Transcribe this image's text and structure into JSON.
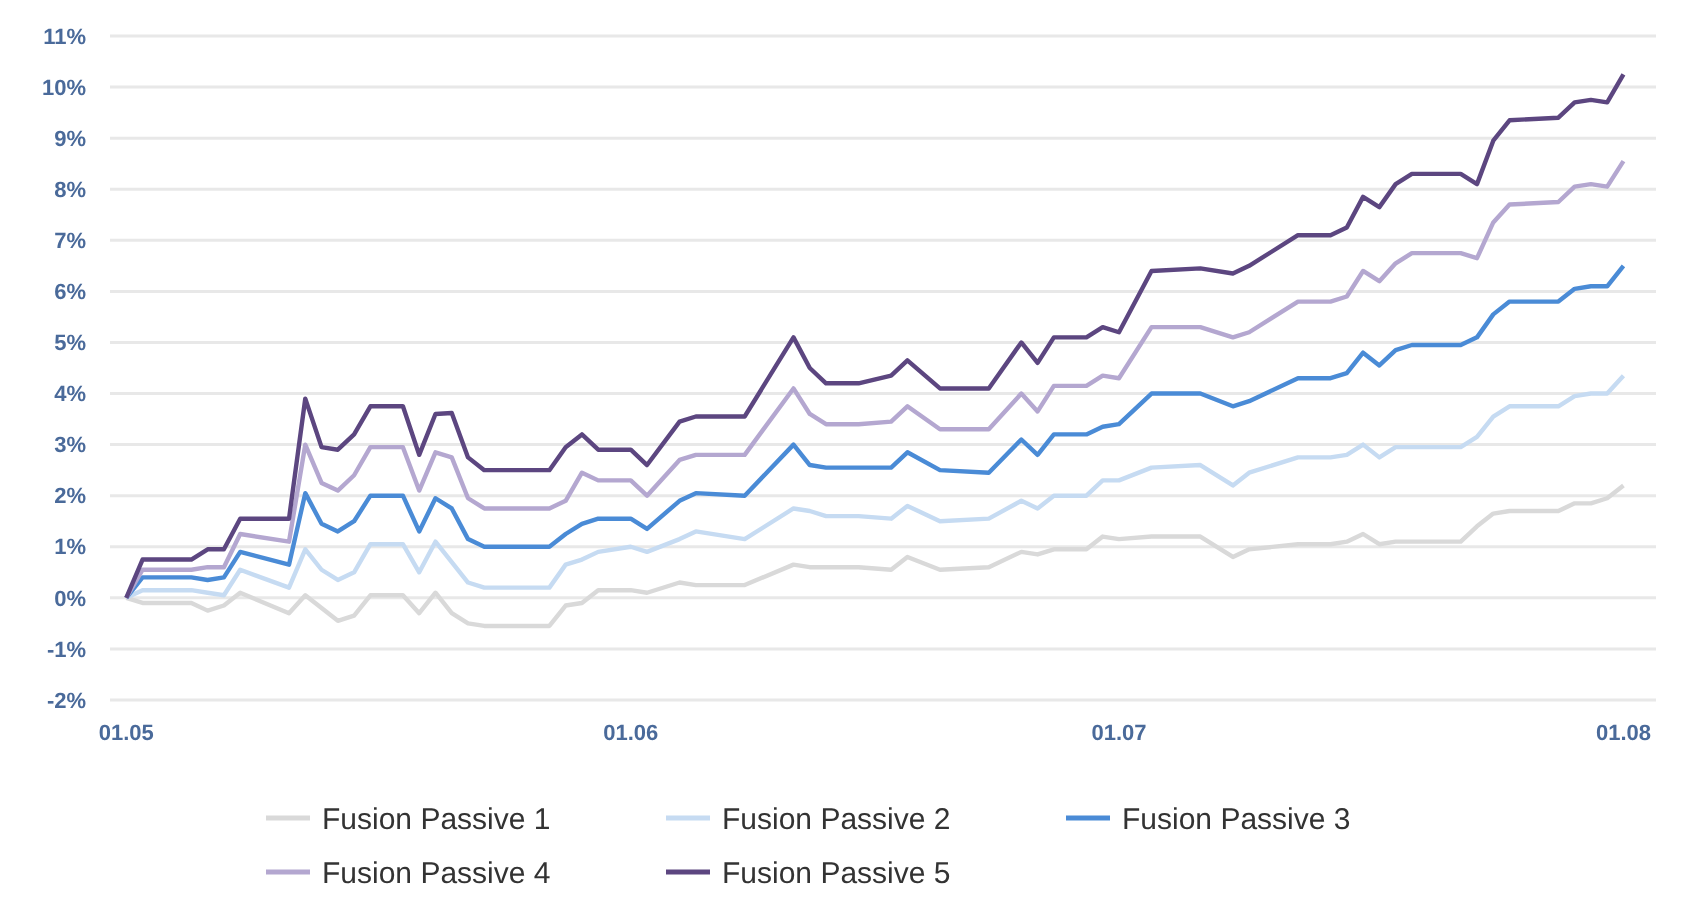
{
  "chart_data": {
    "type": "line",
    "x": [
      "--05-01",
      "--05-02",
      "--05-05",
      "--05-06",
      "--05-07",
      "--05-08",
      "--05-11",
      "--05-12",
      "--05-13",
      "--05-14",
      "--05-15",
      "--05-16",
      "--05-18",
      "--05-19",
      "--05-20",
      "--05-21",
      "--05-22",
      "--05-23",
      "--05-26",
      "--05-27",
      "--05-28",
      "--05-29",
      "--05-30",
      "--06-01",
      "--06-02",
      "--06-04",
      "--06-05",
      "--06-08",
      "--06-11",
      "--06-12",
      "--06-13",
      "--06-15",
      "--06-17",
      "--06-18",
      "--06-20",
      "--06-23",
      "--06-25",
      "--06-26",
      "--06-27",
      "--06-29",
      "--06-30",
      "--07-01",
      "--07-03",
      "--07-06",
      "--07-08",
      "--07-09",
      "--07-12",
      "--07-14",
      "--07-15",
      "--07-16",
      "--07-17",
      "--07-18",
      "--07-19",
      "--07-22",
      "--07-23",
      "--07-24",
      "--07-25",
      "--07-28",
      "--07-29",
      "--07-30",
      "--07-31",
      "--08-01"
    ],
    "series": [
      {
        "name": "Fusion Passive 1",
        "color": "#d9d9d9",
        "values": [
          0,
          -0.1,
          -0.1,
          -0.25,
          -0.15,
          0.1,
          -0.3,
          0.05,
          -0.2,
          -0.45,
          -0.35,
          0.05,
          0.05,
          -0.3,
          0.1,
          -0.3,
          -0.5,
          -0.55,
          -0.55,
          -0.55,
          -0.15,
          -0.1,
          0.15,
          0.15,
          0.1,
          0.3,
          0.25,
          0.25,
          0.65,
          0.6,
          0.6,
          0.6,
          0.55,
          0.8,
          0.55,
          0.6,
          0.9,
          0.85,
          0.95,
          0.95,
          1.2,
          1.15,
          1.2,
          1.2,
          0.8,
          0.95,
          1.05,
          1.05,
          1.1,
          1.25,
          1.05,
          1.1,
          1.1,
          1.1,
          1.4,
          1.65,
          1.7,
          1.7,
          1.85,
          1.85,
          1.95,
          2.2
        ]
      },
      {
        "name": "Fusion Passive 2",
        "color": "#c6dbf2",
        "values": [
          0,
          0.15,
          0.15,
          0.1,
          0.05,
          0.55,
          0.2,
          0.95,
          0.55,
          0.35,
          0.5,
          1.05,
          1.05,
          0.5,
          1.1,
          0.7,
          0.3,
          0.2,
          0.2,
          0.2,
          0.65,
          0.75,
          0.9,
          1.0,
          0.9,
          1.15,
          1.3,
          1.15,
          1.75,
          1.7,
          1.6,
          1.6,
          1.55,
          1.8,
          1.5,
          1.55,
          1.9,
          1.75,
          2.0,
          2.0,
          2.3,
          2.3,
          2.55,
          2.6,
          2.2,
          2.45,
          2.75,
          2.75,
          2.8,
          3.0,
          2.75,
          2.95,
          2.95,
          2.95,
          3.15,
          3.55,
          3.75,
          3.75,
          3.95,
          4.0,
          4.0,
          4.35
        ]
      },
      {
        "name": "Fusion Passive 3",
        "color": "#4a8bd6",
        "values": [
          0,
          0.4,
          0.4,
          0.35,
          0.4,
          0.9,
          0.65,
          2.05,
          1.45,
          1.3,
          1.5,
          2.0,
          2.0,
          1.3,
          1.95,
          1.75,
          1.15,
          1.0,
          1.0,
          1.0,
          1.25,
          1.45,
          1.55,
          1.55,
          1.35,
          1.9,
          2.05,
          2.0,
          3.0,
          2.6,
          2.55,
          2.55,
          2.55,
          2.85,
          2.5,
          2.45,
          3.1,
          2.8,
          3.2,
          3.2,
          3.35,
          3.4,
          4.0,
          4.0,
          3.75,
          3.85,
          4.3,
          4.3,
          4.4,
          4.8,
          4.55,
          4.85,
          4.95,
          4.95,
          5.1,
          5.55,
          5.8,
          5.8,
          6.05,
          6.1,
          6.1,
          6.5
        ]
      },
      {
        "name": "Fusion Passive 4",
        "color": "#b4a7d0",
        "values": [
          0,
          0.55,
          0.55,
          0.6,
          0.6,
          1.25,
          1.1,
          3.0,
          2.25,
          2.1,
          2.4,
          2.95,
          2.95,
          2.1,
          2.85,
          2.75,
          1.95,
          1.75,
          1.75,
          1.75,
          1.9,
          2.45,
          2.3,
          2.3,
          2.0,
          2.7,
          2.8,
          2.8,
          4.1,
          3.6,
          3.4,
          3.4,
          3.45,
          3.75,
          3.3,
          3.3,
          4.0,
          3.65,
          4.15,
          4.15,
          4.35,
          4.3,
          5.3,
          5.3,
          5.1,
          5.2,
          5.8,
          5.8,
          5.9,
          6.4,
          6.2,
          6.55,
          6.75,
          6.75,
          6.65,
          7.35,
          7.7,
          7.75,
          8.05,
          8.1,
          8.05,
          8.55
        ]
      },
      {
        "name": "Fusion Passive 5",
        "color": "#5c4680",
        "values": [
          0,
          0.75,
          0.75,
          0.95,
          0.95,
          1.55,
          1.55,
          3.9,
          2.95,
          2.9,
          3.2,
          3.75,
          3.75,
          2.8,
          3.6,
          3.62,
          2.75,
          2.5,
          2.5,
          2.5,
          2.95,
          3.2,
          2.9,
          2.9,
          2.6,
          3.45,
          3.55,
          3.55,
          5.1,
          4.5,
          4.2,
          4.2,
          4.35,
          4.65,
          4.1,
          4.1,
          5.0,
          4.6,
          5.1,
          5.1,
          5.3,
          5.2,
          6.4,
          6.45,
          6.35,
          6.5,
          7.1,
          7.1,
          7.25,
          7.85,
          7.65,
          8.1,
          8.3,
          8.3,
          8.1,
          8.95,
          9.35,
          9.4,
          9.7,
          9.75,
          9.7,
          10.25
        ]
      }
    ],
    "xlim": [
      "--04-30",
      "--08-03"
    ],
    "xticks": [
      {
        "value": "--05-01",
        "label": "01.05"
      },
      {
        "value": "--06-01",
        "label": "01.06"
      },
      {
        "value": "--07-01",
        "label": "01.07"
      },
      {
        "value": "--08-01",
        "label": "01.08"
      }
    ],
    "ylim": [
      -2,
      11
    ],
    "yticks": [
      {
        "value": -2,
        "label": "-2%"
      },
      {
        "value": -1,
        "label": "-1%"
      },
      {
        "value": 0,
        "label": "0%"
      },
      {
        "value": 1,
        "label": "1%"
      },
      {
        "value": 2,
        "label": "2%"
      },
      {
        "value": 3,
        "label": "3%"
      },
      {
        "value": 4,
        "label": "4%"
      },
      {
        "value": 5,
        "label": "5%"
      },
      {
        "value": 6,
        "label": "6%"
      },
      {
        "value": 7,
        "label": "7%"
      },
      {
        "value": 8,
        "label": "8%"
      },
      {
        "value": 9,
        "label": "9%"
      },
      {
        "value": 10,
        "label": "10%"
      },
      {
        "value": 11,
        "label": "11%"
      }
    ],
    "grid": "y",
    "legend": "bottom",
    "line_style": "solid"
  }
}
